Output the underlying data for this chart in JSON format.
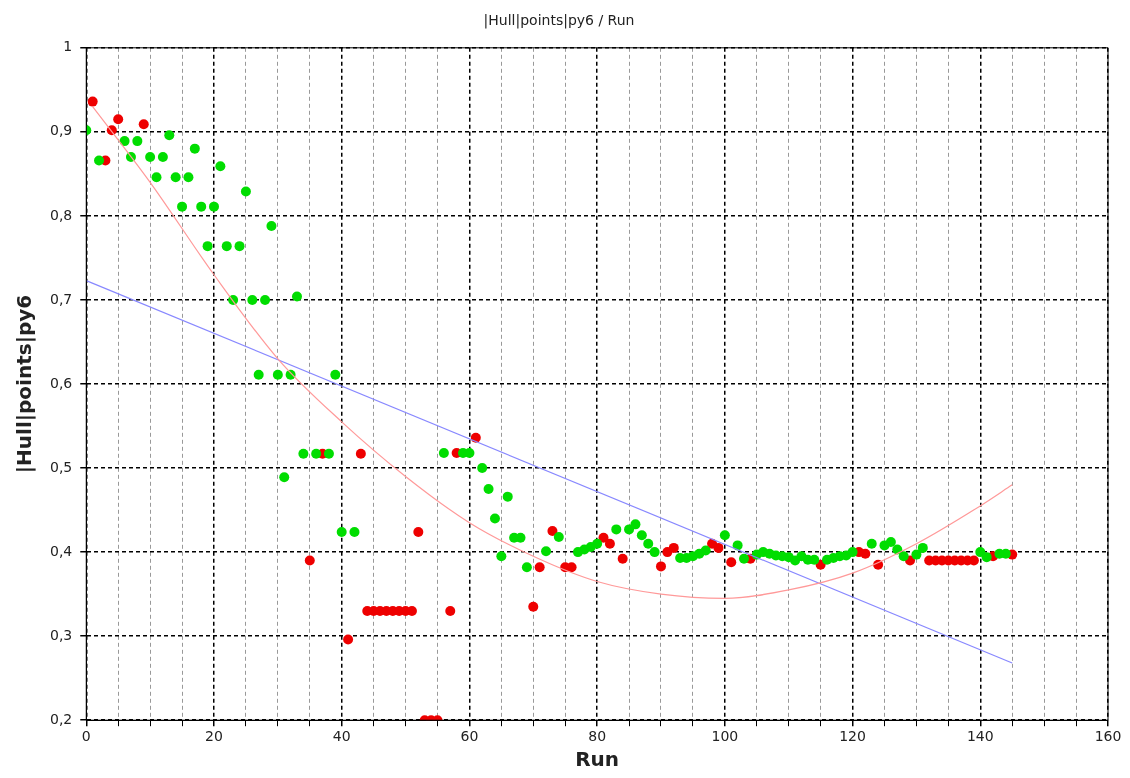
{
  "chart_data": {
    "type": "scatter",
    "title": "|Hull|points|py6 / Run",
    "xlabel": "Run",
    "ylabel": "|Hull|points|py6",
    "xlim": [
      0,
      160
    ],
    "ylim": [
      0.2,
      1
    ],
    "xticks": [
      0,
      {
        "value": 5,
        "label": null
      },
      {
        "value": 10,
        "label": null
      },
      {
        "value": 15,
        "label": null
      },
      20,
      {
        "value": 25,
        "label": null
      },
      {
        "value": 30,
        "label": null
      },
      {
        "value": 35,
        "label": null
      },
      40,
      {
        "value": 45,
        "label": null
      },
      {
        "value": 50,
        "label": null
      },
      {
        "value": 55,
        "label": null
      },
      60,
      {
        "value": 65,
        "label": null
      },
      {
        "value": 70,
        "label": null
      },
      {
        "value": 75,
        "label": null
      },
      80,
      {
        "value": 85,
        "label": null
      },
      {
        "value": 90,
        "label": null
      },
      {
        "value": 95,
        "label": null
      },
      100,
      {
        "value": 105,
        "label": null
      },
      {
        "value": 110,
        "label": null
      },
      {
        "value": 115,
        "label": null
      },
      120,
      {
        "value": 125,
        "label": null
      },
      {
        "value": 130,
        "label": null
      },
      {
        "value": 135,
        "label": null
      },
      140,
      {
        "value": 145,
        "label": null
      },
      {
        "value": 150,
        "label": null
      },
      {
        "value": 155,
        "label": null
      },
      160
    ],
    "yticks": [
      {
        "value": 0.2,
        "label": "0,2"
      },
      {
        "value": 0.3,
        "label": "0,3"
      },
      {
        "value": 0.4,
        "label": "0,4"
      },
      {
        "value": 0.5,
        "label": "0,5"
      },
      {
        "value": 0.6,
        "label": "0,6"
      },
      {
        "value": 0.7,
        "label": "0,7"
      },
      {
        "value": 0.8,
        "label": "0,8"
      },
      {
        "value": 0.9,
        "label": "0,9"
      },
      1
    ],
    "grid": true,
    "legend": false,
    "marker": "circle",
    "series": [
      {
        "type": "line",
        "marker": "none",
        "color": "#ff9999",
        "x": [
          1,
          10,
          20,
          30,
          40,
          50,
          60,
          70,
          80,
          90,
          100,
          110,
          120,
          130,
          140,
          145
        ],
        "values": [
          0.93,
          0.84,
          0.73,
          0.63,
          0.555,
          0.49,
          0.435,
          0.395,
          0.365,
          0.35,
          0.345,
          0.355,
          0.375,
          0.41,
          0.455,
          0.48
        ]
      },
      {
        "type": "line",
        "marker": "none",
        "color": "#8888ff",
        "x": [
          0,
          145
        ],
        "values": [
          0.723,
          0.268
        ]
      },
      {
        "color": "#00dd00",
        "x": [
          0,
          2,
          6,
          7,
          8,
          10,
          11,
          12,
          13,
          14,
          15,
          16,
          17,
          18,
          19,
          20,
          21,
          22,
          23,
          24,
          25,
          26,
          27,
          28,
          29,
          30,
          31,
          32,
          33,
          34,
          36,
          38,
          39,
          40,
          42,
          56,
          59,
          60,
          62,
          63,
          64,
          65,
          66,
          67,
          68,
          69,
          72,
          74,
          77,
          78,
          79,
          80,
          83,
          85,
          86,
          87,
          88,
          89,
          93,
          94,
          95,
          96,
          97,
          100,
          102,
          103,
          105,
          106,
          107,
          108,
          109,
          110,
          111,
          112,
          113,
          114,
          116,
          117,
          118,
          119,
          120,
          123,
          125,
          126,
          127,
          128,
          130,
          131,
          140,
          141,
          143,
          144
        ],
        "values": [
          0.902,
          0.866,
          0.889,
          0.87,
          0.889,
          0.87,
          0.846,
          0.87,
          0.896,
          0.846,
          0.811,
          0.846,
          0.88,
          0.811,
          0.764,
          0.811,
          0.859,
          0.764,
          0.7,
          0.764,
          0.829,
          0.7,
          0.611,
          0.7,
          0.788,
          0.611,
          0.489,
          0.611,
          0.704,
          0.517,
          0.517,
          0.517,
          0.611,
          0.424,
          0.424,
          0.518,
          0.518,
          0.518,
          0.5,
          0.475,
          0.44,
          0.395,
          0.466,
          0.417,
          0.417,
          0.382,
          0.401,
          0.418,
          0.4,
          0.403,
          0.406,
          0.41,
          0.427,
          0.427,
          0.433,
          0.42,
          0.41,
          0.4,
          0.393,
          0.393,
          0.395,
          0.398,
          0.402,
          0.42,
          0.408,
          0.392,
          0.397,
          0.4,
          0.398,
          0.396,
          0.395,
          0.394,
          0.39,
          0.395,
          0.391,
          0.391,
          0.391,
          0.393,
          0.395,
          0.396,
          0.4,
          0.41,
          0.408,
          0.412,
          0.403,
          0.395,
          0.397,
          0.405,
          0.4,
          0.394,
          0.398,
          0.398
        ]
      },
      {
        "color": "#ee0000",
        "x": [
          1,
          3,
          4,
          5,
          9,
          35,
          37,
          41,
          43,
          44,
          45,
          46,
          47,
          48,
          49,
          50,
          51,
          52,
          53,
          54,
          55,
          57,
          58,
          61,
          70,
          71,
          73,
          75,
          76,
          81,
          82,
          84,
          90,
          91,
          92,
          98,
          99,
          101,
          104,
          115,
          121,
          122,
          124,
          129,
          132,
          133,
          134,
          135,
          136,
          137,
          138,
          139,
          142,
          145
        ],
        "values": [
          0.936,
          0.866,
          0.902,
          0.915,
          0.909,
          0.39,
          0.517,
          0.296,
          0.517,
          0.33,
          0.33,
          0.33,
          0.33,
          0.33,
          0.33,
          0.33,
          0.33,
          0.424,
          0.2,
          0.2,
          0.2,
          0.33,
          0.518,
          0.536,
          0.335,
          0.382,
          0.425,
          0.382,
          0.382,
          0.417,
          0.41,
          0.392,
          0.383,
          0.4,
          0.405,
          0.41,
          0.405,
          0.388,
          0.392,
          0.385,
          0.4,
          0.398,
          0.385,
          0.39,
          0.39,
          0.39,
          0.39,
          0.39,
          0.39,
          0.39,
          0.39,
          0.39,
          0.395,
          0.397
        ]
      }
    ]
  }
}
